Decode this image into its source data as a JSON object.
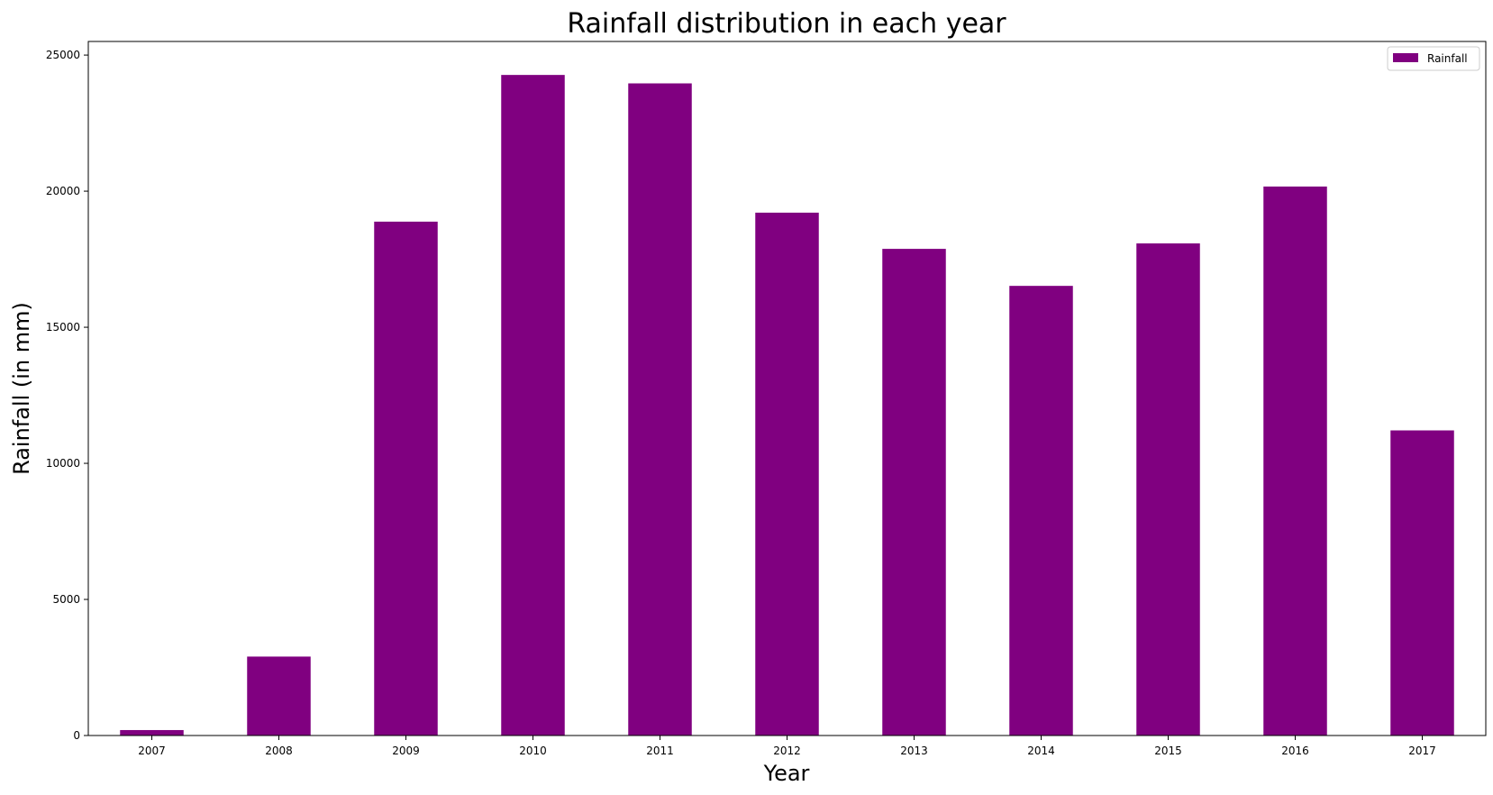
{
  "chart_data": {
    "type": "bar",
    "title": "Rainfall distribution in each year",
    "xlabel": "Year",
    "ylabel": "Rainfall (in mm)",
    "categories": [
      "2007",
      "2008",
      "2009",
      "2010",
      "2011",
      "2012",
      "2013",
      "2014",
      "2015",
      "2016",
      "2017"
    ],
    "series": [
      {
        "name": "Rainfall",
        "color": "#800080",
        "values": [
          200,
          2900,
          18880,
          24270,
          23960,
          19210,
          17880,
          16520,
          18080,
          20170,
          11210
        ]
      }
    ],
    "ylim": [
      0,
      25500
    ],
    "yticks": [
      0,
      5000,
      10000,
      15000,
      20000,
      25000
    ],
    "grid": false,
    "legend": "top-right"
  }
}
